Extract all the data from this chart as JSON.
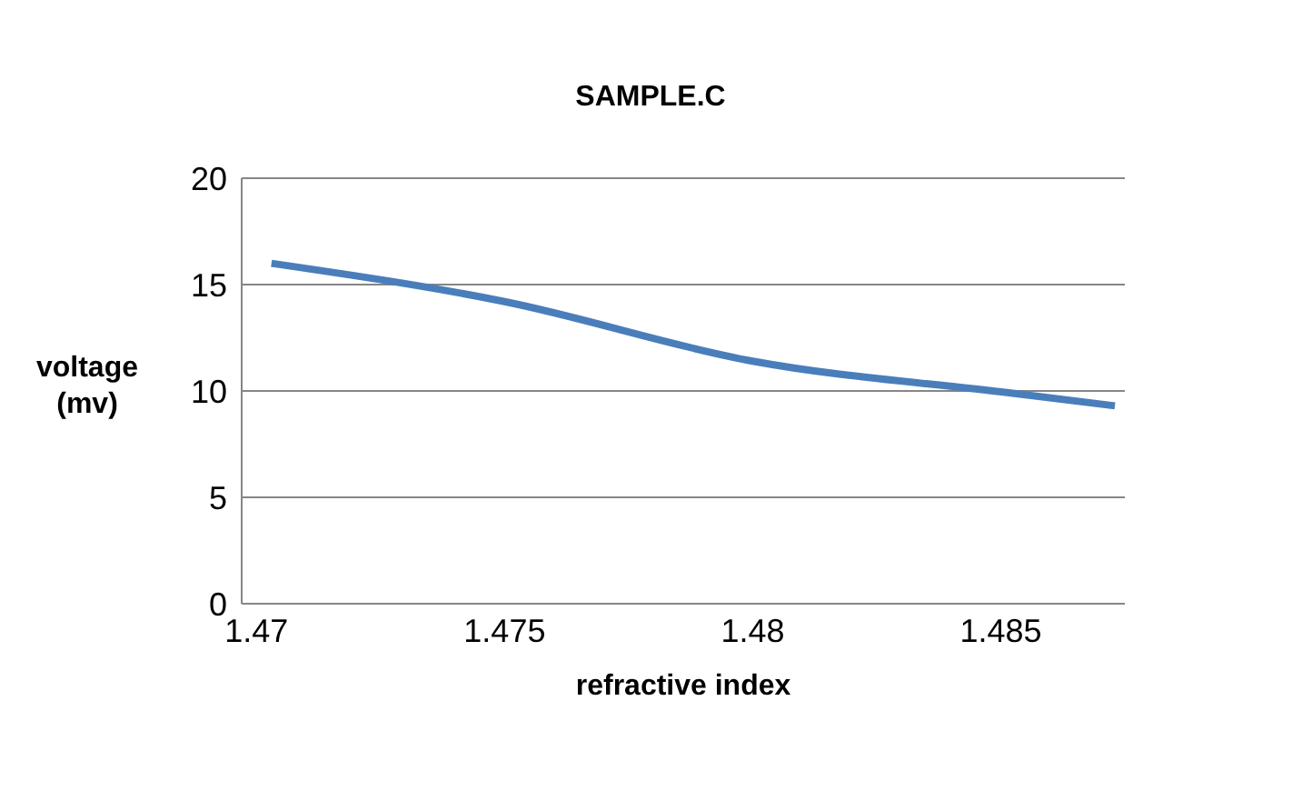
{
  "chart_data": {
    "type": "line",
    "title": "SAMPLE.C",
    "xlabel": "refractive index",
    "ylabel": "voltage (mv)",
    "x": [
      1.4703,
      1.475,
      1.48,
      1.4852,
      1.4873
    ],
    "series": [
      {
        "color": "#4a7ebb",
        "values": [
          16,
          14.2,
          11.4,
          9.9,
          9.3
        ]
      }
    ],
    "xlim": [
      1.4697,
      1.4875
    ],
    "xticks": [
      1.47,
      1.475,
      1.48,
      1.485
    ],
    "ylim": [
      0,
      20
    ],
    "yticks": [
      0,
      5,
      10,
      15,
      20
    ],
    "grid": "y",
    "legend": false,
    "marker": "none",
    "line_style": "solid"
  }
}
